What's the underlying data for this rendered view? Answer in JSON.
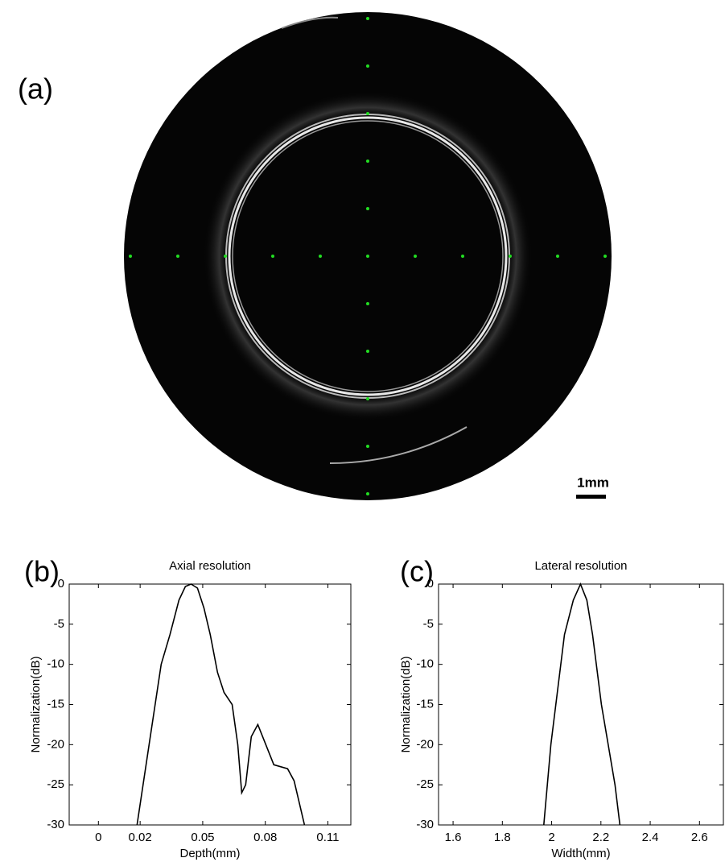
{
  "image_panel": {
    "label": "(a)",
    "scale_bar": "1mm"
  },
  "chart_data": [
    {
      "type": "line",
      "panel_label": "(b)",
      "title": "Axial resolution",
      "x_label": "Depth(mm)",
      "y_label": "Normalization(dB)",
      "x": [
        0.0185,
        0.0243,
        0.0301,
        0.0343,
        0.0386,
        0.0417,
        0.0444,
        0.0475,
        0.0506,
        0.0536,
        0.0571,
        0.0602,
        0.0641,
        0.0668,
        0.0687,
        0.0706,
        0.0733,
        0.0764,
        0.0795,
        0.0841,
        0.0907,
        0.0938,
        0.0988
      ],
      "values": [
        -30,
        -20,
        -10,
        -6.3,
        -2,
        -0.3,
        0,
        -0.5,
        -3,
        -6.3,
        -11,
        -13.5,
        -15,
        -20,
        -26,
        -25,
        -19,
        -17.5,
        -19.5,
        -22.5,
        -23,
        -24.5,
        -30
      ],
      "color": "#000000",
      "xlim": [
        -0.014,
        0.121
      ],
      "xticks": [
        0,
        0.02,
        0.05,
        0.08,
        0.11
      ],
      "ylim": [
        -30,
        0
      ],
      "yticks": [
        0,
        -5,
        -10,
        -15,
        -20,
        -25,
        -30
      ]
    },
    {
      "type": "line",
      "panel_label": "(c)",
      "title": "Lateral resolution",
      "x_label": "Width(mm)",
      "y_label": "Normalization(dB)",
      "x": [
        1.968,
        1.997,
        2.052,
        2.088,
        2.117,
        2.143,
        2.166,
        2.202,
        2.257,
        2.277
      ],
      "values": [
        -30,
        -20,
        -6.3,
        -2,
        0,
        -2,
        -6.3,
        -15,
        -25,
        -30
      ],
      "color": "#000000",
      "xlim": [
        1.541,
        2.697
      ],
      "xticks": [
        1.6,
        1.8,
        2,
        2.2,
        2.4,
        2.6
      ],
      "ylim": [
        -30,
        0
      ],
      "yticks": [
        0,
        -5,
        -10,
        -15,
        -20,
        -25,
        -30
      ]
    }
  ]
}
